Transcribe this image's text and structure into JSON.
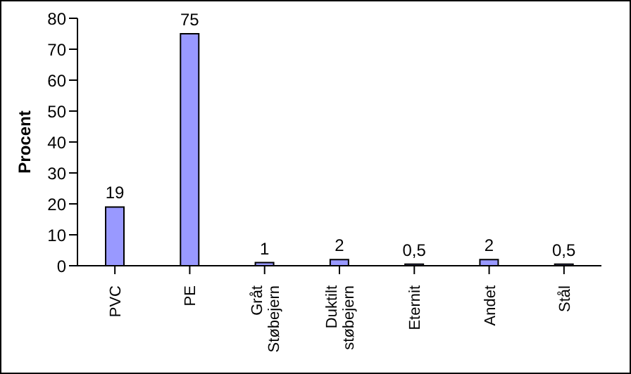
{
  "chart_data": {
    "type": "bar",
    "ylabel": "Procent",
    "categories": [
      "PVC",
      "PE",
      "Gråt Støbejern",
      "Duktilt støbejern",
      "Eternit",
      "Andet",
      "Stål"
    ],
    "values": [
      19,
      75,
      1,
      2,
      0.5,
      2,
      0.5
    ],
    "value_labels": [
      "19",
      "75",
      "1",
      "2",
      "0,5",
      "2",
      "0,5"
    ],
    "color": "#9999ff",
    "ylim": [
      0,
      80
    ],
    "yticks": [
      0,
      10,
      20,
      30,
      40,
      50,
      60,
      70,
      80
    ],
    "grid": false
  }
}
